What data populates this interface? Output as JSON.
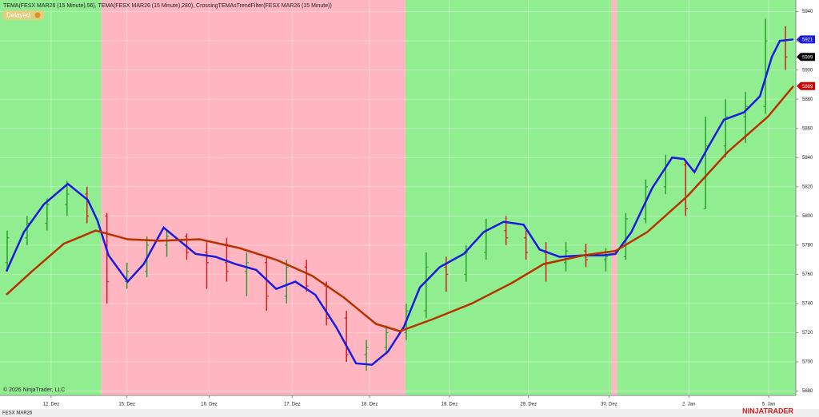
{
  "chart_data": {
    "type": "ohlc",
    "legend_text": "TEMA(FESX MAR26 (15 Minute),56), TEMA(FESX MAR26 (15 Minute),280), CrossingTEMAsTrendFilter(FESX MAR26 (15 Minute))",
    "status": "Delayed",
    "copyright": "© 2026 NinjaTrader, LLC",
    "instrument": "FESX MAR26",
    "brand": "NINJATRADER",
    "xlim": [
      -0.64,
      9.33
    ],
    "ylim": [
      5677,
      5948
    ],
    "xticks": [
      {
        "value": 0,
        "label": "12. Dez"
      },
      {
        "value": 0.95,
        "label": "15. Dez"
      },
      {
        "value": 1.98,
        "label": "16. Dez"
      },
      {
        "value": 3.02,
        "label": "17. Dez"
      },
      {
        "value": 3.99,
        "label": "18. Dez"
      },
      {
        "value": 4.99,
        "label": "19. Dez"
      },
      {
        "value": 5.98,
        "label": "29. Dez"
      },
      {
        "value": 6.99,
        "label": "30. Dez"
      },
      {
        "value": 7.99,
        "label": "2. Jan"
      },
      {
        "value": 8.99,
        "label": "5. Jan"
      }
    ],
    "yticks": [
      5680,
      5700,
      5720,
      5740,
      5760,
      5780,
      5800,
      5820,
      5840,
      5860,
      5880,
      5900,
      5920,
      5940
    ],
    "grid": true,
    "regions": [
      {
        "start": -0.64,
        "end": 0.63,
        "color": "#90ee90"
      },
      {
        "start": 0.63,
        "end": 4.44,
        "color": "#ffb6c1"
      },
      {
        "start": 4.44,
        "end": 7.02,
        "color": "#90ee90"
      },
      {
        "start": 7.02,
        "end": 7.09,
        "color": "#ffb6c1"
      },
      {
        "start": 7.09,
        "end": 9.33,
        "color": "#90ee90"
      }
    ],
    "up_color": "#2e9e2e",
    "down_color": "#d42020",
    "bars": {
      "x": [
        -0.55,
        -0.3,
        -0.05,
        0.2,
        0.45,
        0.7,
        0.95,
        1.2,
        1.45,
        1.7,
        1.95,
        2.2,
        2.45,
        2.7,
        2.95,
        3.2,
        3.45,
        3.7,
        3.95,
        4.2,
        4.45,
        4.7,
        4.95,
        5.2,
        5.45,
        5.7,
        5.95,
        6.2,
        6.45,
        6.7,
        6.95,
        7.2,
        7.45,
        7.7,
        7.95,
        8.2,
        8.45,
        8.7,
        8.95,
        9.2
      ],
      "open": [
        5768,
        5785,
        5795,
        5808,
        5815,
        5800,
        5755,
        5762,
        5780,
        5786,
        5775,
        5768,
        5762,
        5768,
        5745,
        5765,
        5752,
        5730,
        5705,
        5710,
        5720,
        5735,
        5765,
        5760,
        5775,
        5790,
        5785,
        5775,
        5768,
        5776,
        5770,
        5772,
        5798,
        5820,
        5835,
        5805,
        5848,
        5868,
        5875,
        5920
      ],
      "high": [
        5790,
        5800,
        5812,
        5824,
        5820,
        5802,
        5768,
        5786,
        5790,
        5788,
        5782,
        5785,
        5775,
        5772,
        5770,
        5770,
        5755,
        5735,
        5715,
        5725,
        5740,
        5775,
        5772,
        5780,
        5798,
        5800,
        5790,
        5782,
        5782,
        5781,
        5778,
        5802,
        5825,
        5842,
        5838,
        5868,
        5880,
        5885,
        5935,
        5930
      ],
      "low": [
        5762,
        5780,
        5790,
        5800,
        5795,
        5740,
        5750,
        5758,
        5772,
        5770,
        5750,
        5755,
        5745,
        5735,
        5740,
        5748,
        5725,
        5700,
        5694,
        5705,
        5715,
        5730,
        5748,
        5755,
        5770,
        5780,
        5770,
        5755,
        5762,
        5765,
        5762,
        5770,
        5795,
        5815,
        5800,
        5805,
        5840,
        5850,
        5870,
        5900
      ],
      "close": [
        5785,
        5795,
        5808,
        5815,
        5800,
        5755,
        5762,
        5780,
        5786,
        5775,
        5768,
        5762,
        5768,
        5745,
        5765,
        5752,
        5730,
        5705,
        5710,
        5720,
        5735,
        5765,
        5760,
        5775,
        5790,
        5785,
        5775,
        5768,
        5776,
        5770,
        5772,
        5798,
        5820,
        5835,
        5805,
        5848,
        5868,
        5875,
        5920,
        5909
      ]
    },
    "series": [
      {
        "name": "TEMA 56",
        "color": "#1a1ae0",
        "x": [
          -0.56,
          -0.34,
          -0.09,
          0.21,
          0.46,
          0.58,
          0.72,
          0.96,
          1.16,
          1.41,
          1.61,
          1.81,
          2.06,
          2.31,
          2.57,
          2.82,
          3.06,
          3.31,
          3.57,
          3.82,
          4.02,
          4.22,
          4.42,
          4.62,
          4.87,
          5.17,
          5.42,
          5.67,
          5.92,
          6.12,
          6.37,
          6.67,
          6.92,
          7.07,
          7.27,
          7.53,
          7.78,
          7.93,
          8.06,
          8.23,
          8.43,
          8.68,
          8.88,
          9.03,
          9.13,
          9.3
        ],
        "values": [
          5762,
          5789,
          5808,
          5822,
          5811,
          5797,
          5773,
          5755,
          5767,
          5792,
          5783,
          5774,
          5772,
          5767,
          5763,
          5750,
          5755,
          5746,
          5724,
          5699,
          5698,
          5707,
          5724,
          5751,
          5765,
          5774,
          5789,
          5796,
          5794,
          5777,
          5772,
          5773,
          5773,
          5774,
          5789,
          5819,
          5840,
          5839,
          5830,
          5847,
          5866,
          5871,
          5882,
          5909,
          5920,
          5921
        ]
      },
      {
        "name": "TEMA 280",
        "color": "#b83200",
        "x": [
          -0.56,
          -0.24,
          0.16,
          0.56,
          0.96,
          1.36,
          1.86,
          2.36,
          2.82,
          3.27,
          3.67,
          4.07,
          4.37,
          4.77,
          5.27,
          5.77,
          6.17,
          6.67,
          7.07,
          7.47,
          7.98,
          8.48,
          8.98,
          9.3
        ],
        "values": [
          5746,
          5762,
          5781,
          5790,
          5784,
          5783,
          5784,
          5778,
          5770,
          5759,
          5744,
          5726,
          5721,
          5729,
          5740,
          5754,
          5767,
          5773,
          5776,
          5789,
          5814,
          5844,
          5868,
          5889
        ]
      }
    ],
    "price_markers": [
      {
        "value": 5921,
        "color": "#1a1ae0"
      },
      {
        "value": 5909,
        "color": "#000000"
      },
      {
        "value": 5889,
        "color": "#cc0000"
      }
    ]
  }
}
